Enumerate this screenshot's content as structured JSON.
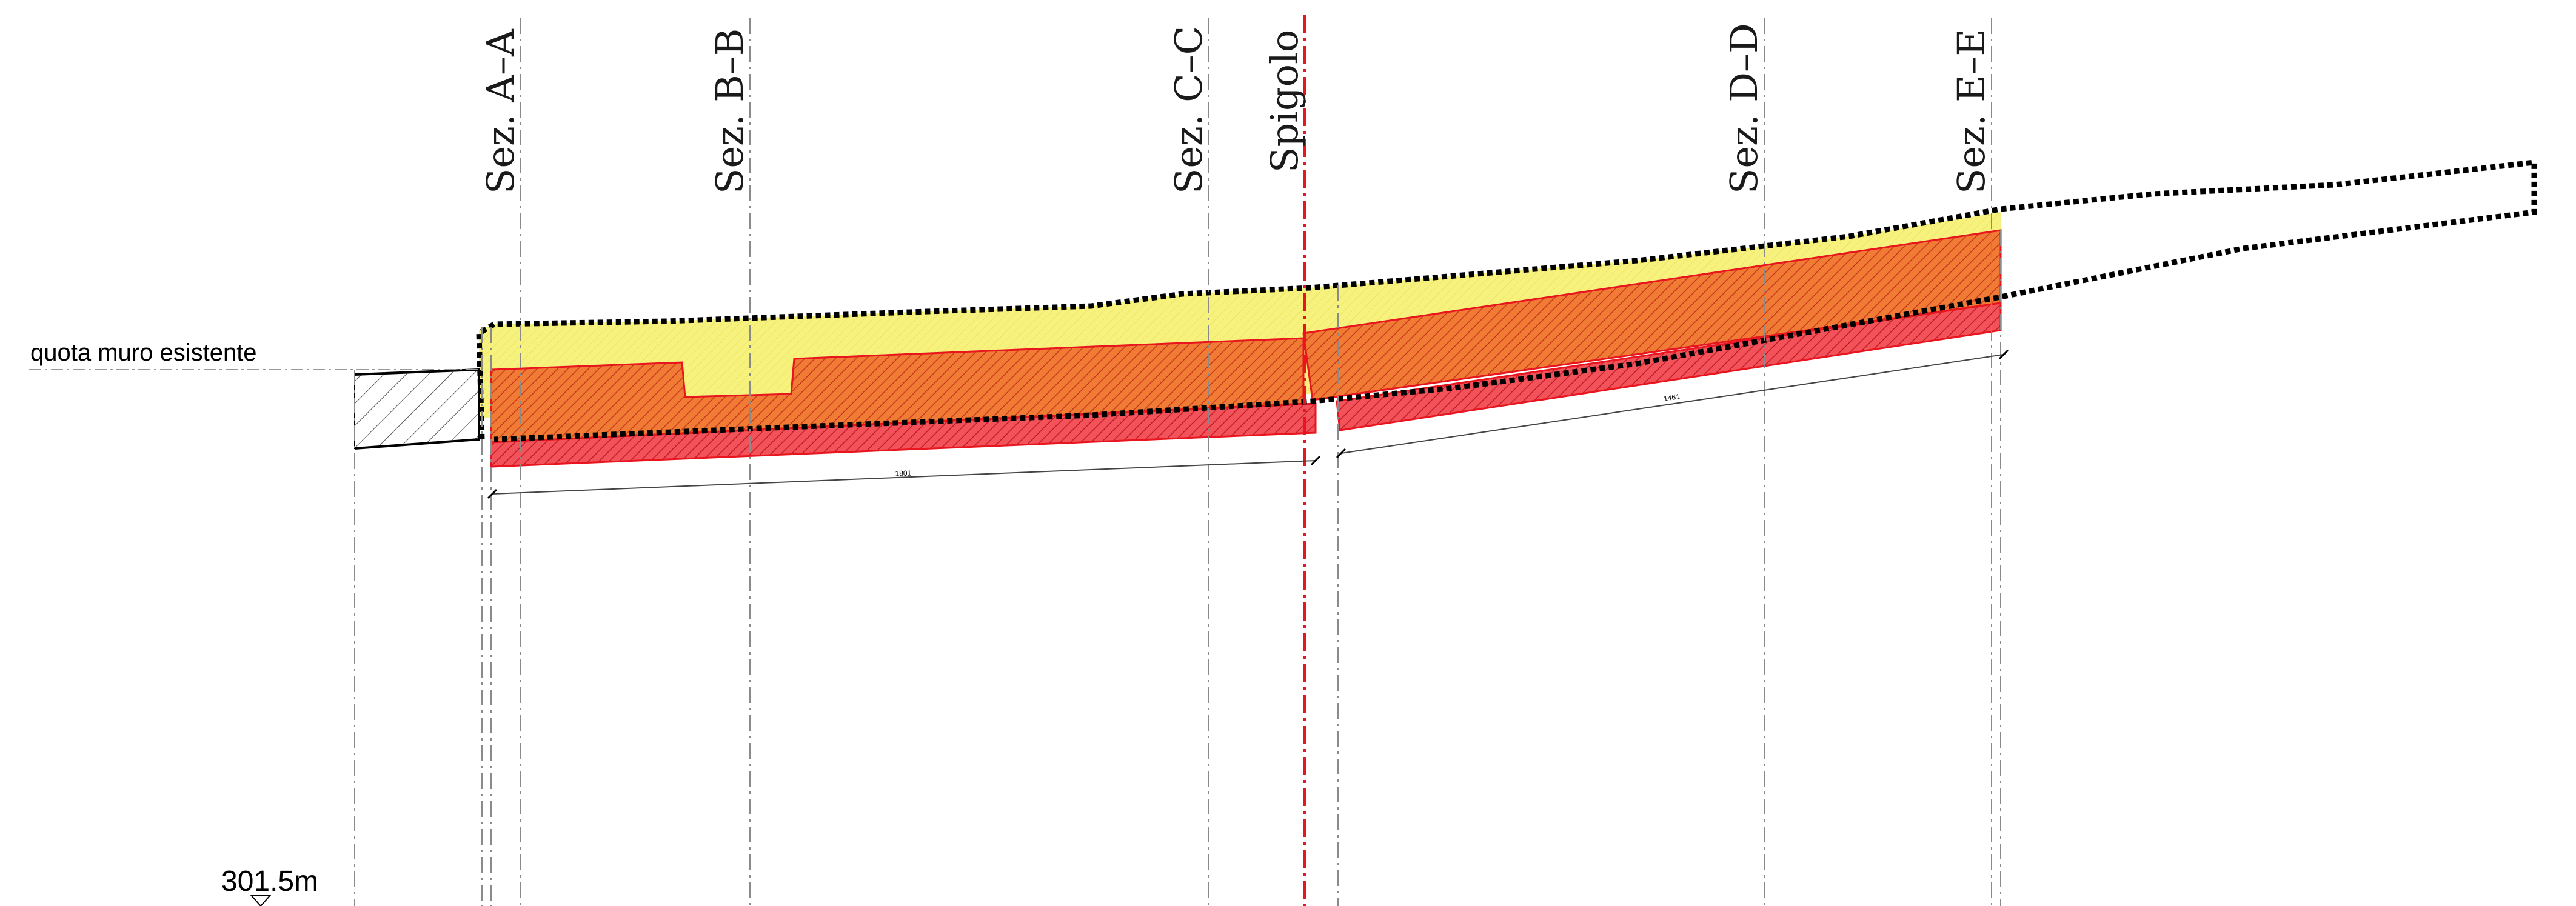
{
  "section_labels": {
    "a": "Sez.  A–A",
    "b": "Sez.  B–B",
    "c": "Sez.  C–C",
    "spigolo": "Spigolo",
    "d": "Sez.  D–D",
    "e": "Sez.  E–E"
  },
  "wall_label": "quota muro esistente",
  "elevation_label": "301.5m",
  "dimensions": {
    "left_span": "1801",
    "right_span": "1461"
  },
  "colors": {
    "fill_yellow": "#f7f27e",
    "fill_orange": "#ef7b35",
    "fill_red": "#f2525a",
    "outline_red": "#e8141e",
    "axis_red": "#e8141e",
    "guide_grey": "#8a8a8a"
  }
}
